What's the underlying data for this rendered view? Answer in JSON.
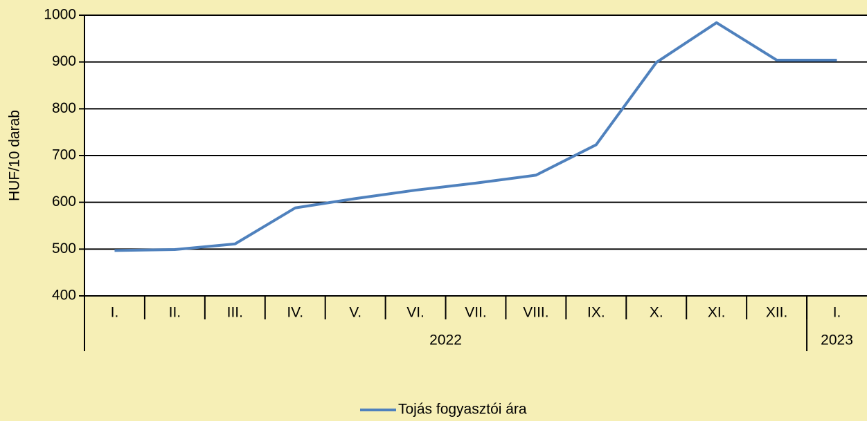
{
  "chart_data": {
    "type": "line",
    "y_label": "HUF/10 darab",
    "categories": [
      "I.",
      "II.",
      "III.",
      "IV.",
      "V.",
      "VI.",
      "VII.",
      "VIII.",
      "IX.",
      "X.",
      "XI.",
      "XII.",
      "I."
    ],
    "groups": [
      {
        "label": "2022",
        "span": 12
      },
      {
        "label": "2023",
        "span": 1
      }
    ],
    "series": [
      {
        "name": "Tojás fogyasztói ára",
        "color": "#4f81bd",
        "values": [
          497,
          499,
          511,
          588,
          608,
          626,
          641,
          658,
          723,
          899,
          984,
          904,
          904
        ]
      }
    ],
    "ylim": [
      400,
      1000
    ],
    "yticks": [
      400,
      500,
      600,
      700,
      800,
      900,
      1000
    ],
    "grid": true
  }
}
